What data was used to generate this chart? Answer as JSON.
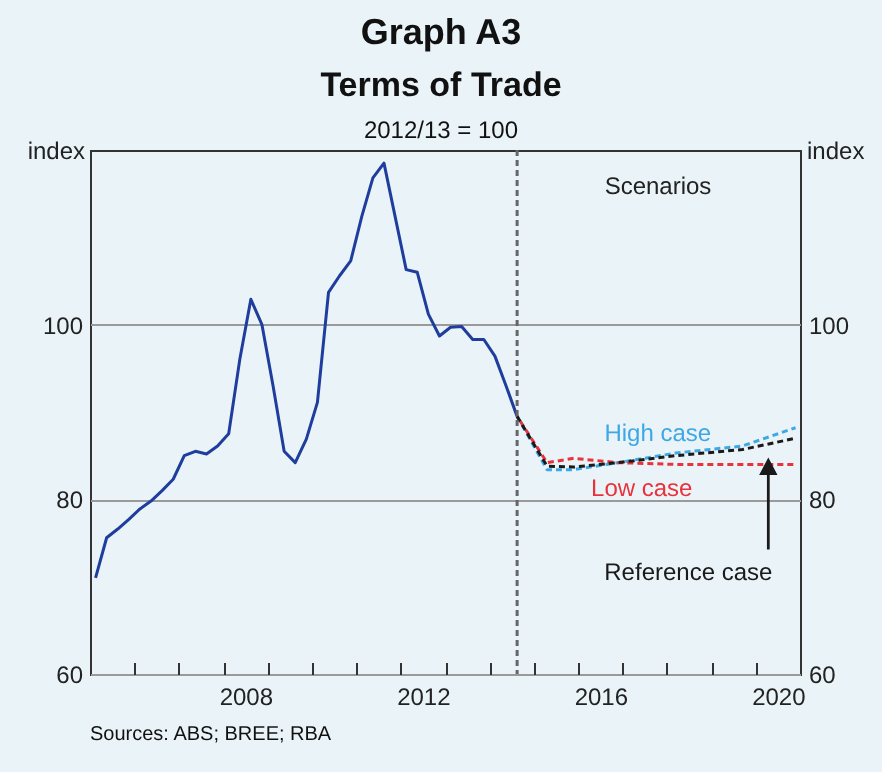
{
  "chart_data": {
    "type": "line",
    "title": "Graph A3",
    "subtitle": "Terms of Trade",
    "ylabel": "index",
    "y2label": "index",
    "annotations": [
      "2012/13 = 100",
      "Scenarios",
      "Sources: ABS; BREE; RBA"
    ],
    "xlim": [
      2005,
      2021
    ],
    "xticks": [
      {
        "value": 2006,
        "label": null
      },
      {
        "value": 2007,
        "label": null
      },
      {
        "value": 2008,
        "label": null
      },
      {
        "value": 2008.5,
        "label": "2008"
      },
      {
        "value": 2009,
        "label": null
      },
      {
        "value": 2010,
        "label": null
      },
      {
        "value": 2011,
        "label": null
      },
      {
        "value": 2012,
        "label": null
      },
      {
        "value": 2012.5,
        "label": "2012"
      },
      {
        "value": 2013,
        "label": null
      },
      {
        "value": 2014,
        "label": null
      },
      {
        "value": 2015,
        "label": null
      },
      {
        "value": 2016,
        "label": null
      },
      {
        "value": 2016.5,
        "label": "2016"
      },
      {
        "value": 2017,
        "label": null
      },
      {
        "value": 2018,
        "label": null
      },
      {
        "value": 2019,
        "label": null
      },
      {
        "value": 2020,
        "label": null
      },
      {
        "value": 2020.5,
        "label": "2020"
      }
    ],
    "ylim": [
      60,
      120
    ],
    "yticks": [
      60,
      80,
      100
    ],
    "y2lim": [
      60,
      120
    ],
    "y2ticks": [
      60,
      80,
      100
    ],
    "grid": "y",
    "ref_lines": [
      {
        "axis": "x",
        "value": 2014.625,
        "color": "#666666",
        "line_style": "dashed"
      }
    ],
    "series": [
      {
        "color": "#1f3d9c",
        "line_style": "solid",
        "x": [
          2005.125,
          2005.375,
          2005.625,
          2005.875,
          2006.125,
          2006.375,
          2006.625,
          2006.875,
          2007.125,
          2007.375,
          2007.625,
          2007.875,
          2008.125,
          2008.375,
          2008.625,
          2008.875,
          2009.125,
          2009.375,
          2009.625,
          2009.875,
          2010.125,
          2010.375,
          2010.625,
          2010.875,
          2011.125,
          2011.375,
          2011.625,
          2011.875,
          2012.125,
          2012.375,
          2012.625,
          2012.875,
          2013.125,
          2013.375,
          2013.625,
          2013.875,
          2014.125,
          2014.375,
          2014.625
        ],
        "values": [
          71.0,
          75.6,
          76.6,
          77.7,
          78.9,
          79.8,
          81.0,
          82.3,
          85.0,
          85.5,
          85.2,
          86.1,
          87.5,
          96.0,
          102.9,
          100.0,
          93.0,
          85.5,
          84.2,
          86.9,
          91.1,
          103.7,
          105.6,
          107.3,
          112.4,
          116.8,
          118.5,
          112.4,
          106.3,
          106.0,
          101.2,
          98.7,
          99.7,
          99.8,
          98.3,
          98.3,
          96.4,
          93.0,
          89.5
        ]
      },
      {
        "name": "High case",
        "color": "#3ea8e5",
        "line_style": "dashed",
        "x": [
          2014.625,
          2015.3,
          2015.9,
          2016.9,
          2018.2,
          2019.7,
          2020.9
        ],
        "values": [
          89.5,
          83.4,
          83.4,
          84.2,
          85.3,
          86.1,
          88.2
        ]
      },
      {
        "name": "Low case",
        "color": "#e8323c",
        "line_style": "dashed",
        "x": [
          2014.625,
          2015.3,
          2015.9,
          2016.9,
          2018.2,
          2019.7,
          2020.9
        ],
        "values": [
          89.5,
          84.2,
          84.7,
          84.2,
          84.0,
          84.0,
          84.0
        ]
      },
      {
        "name": "Reference case",
        "color": "#1a1a1a",
        "line_style": "dashed",
        "x": [
          2014.625,
          2015.3,
          2015.9,
          2016.9,
          2018.2,
          2019.7,
          2020.9
        ],
        "values": [
          89.5,
          83.8,
          83.7,
          84.2,
          85.0,
          85.7,
          87.0
        ]
      }
    ]
  }
}
